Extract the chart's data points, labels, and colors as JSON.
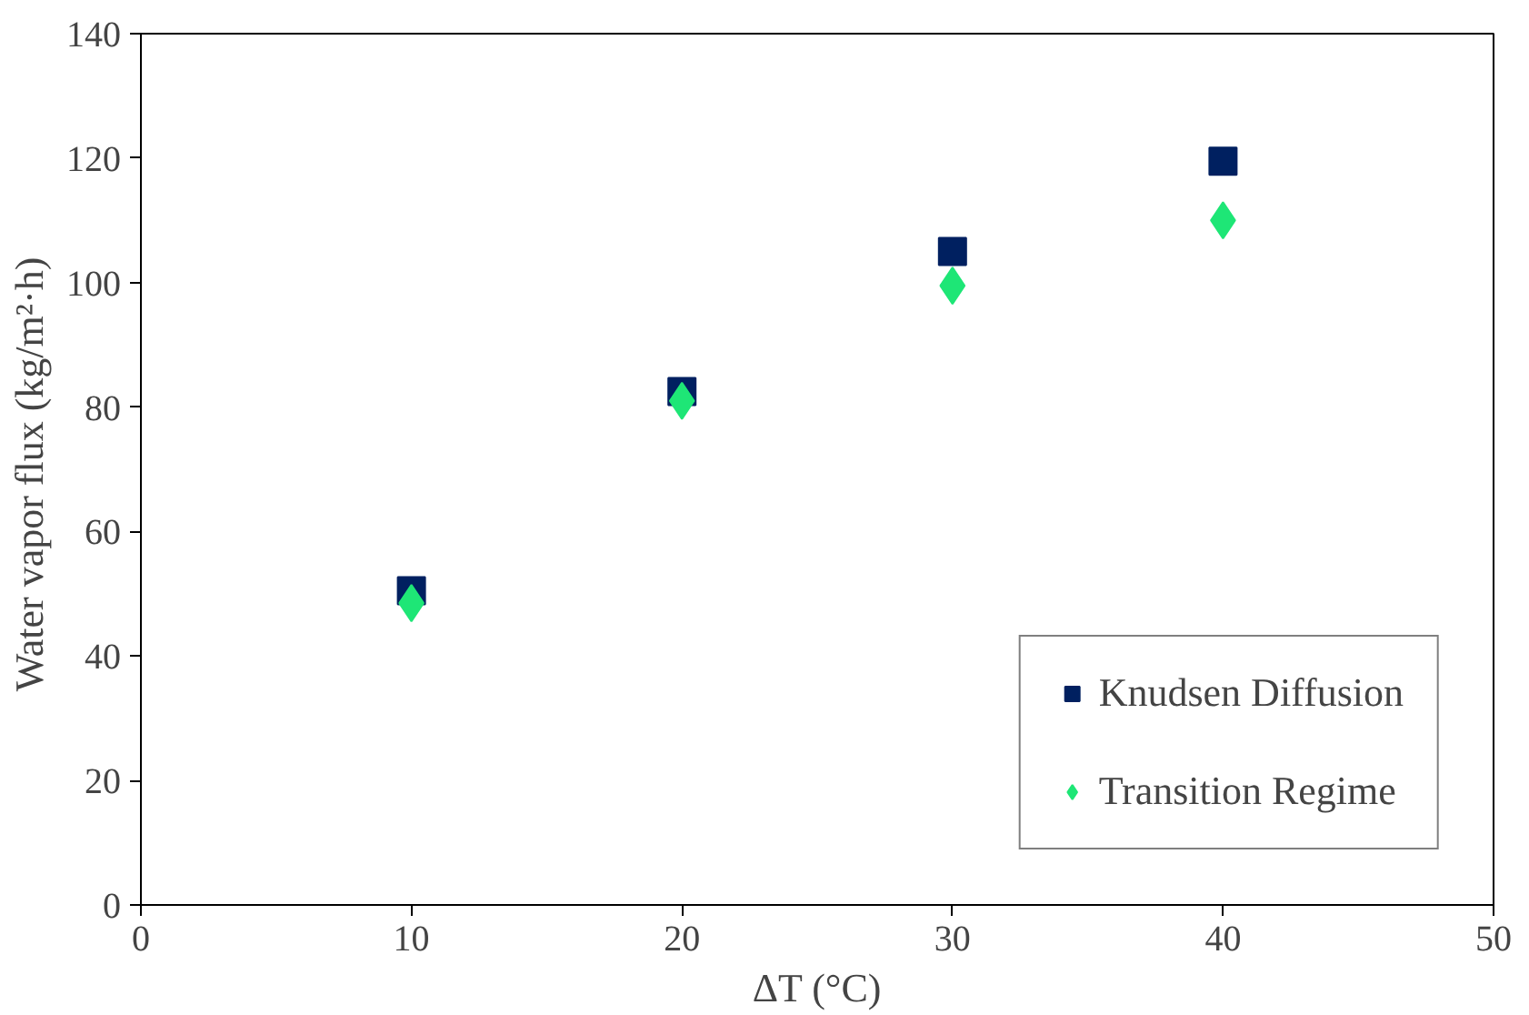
{
  "chart_data": {
    "type": "scatter",
    "xlabel": "ΔT (°C)",
    "ylabel": "Water  vapor flux (kg/m²·h)",
    "x": [
      10,
      20,
      30,
      40
    ],
    "series": [
      {
        "name": "Knudsen Diffusion",
        "color": "#002060",
        "marker": "square",
        "values": [
          50.5,
          82.5,
          105,
          119.5
        ]
      },
      {
        "name": "Transition Regime",
        "color": "#1ee676",
        "marker": "diamond",
        "values": [
          48.5,
          81,
          99.5,
          110
        ]
      }
    ],
    "xlim": [
      0,
      50
    ],
    "xticks": [
      0,
      10,
      20,
      30,
      40,
      50
    ],
    "ylim": [
      0,
      140
    ],
    "yticks": [
      0,
      20,
      40,
      60,
      80,
      100,
      120,
      140
    ],
    "grid": false,
    "legend": "bottom right"
  }
}
